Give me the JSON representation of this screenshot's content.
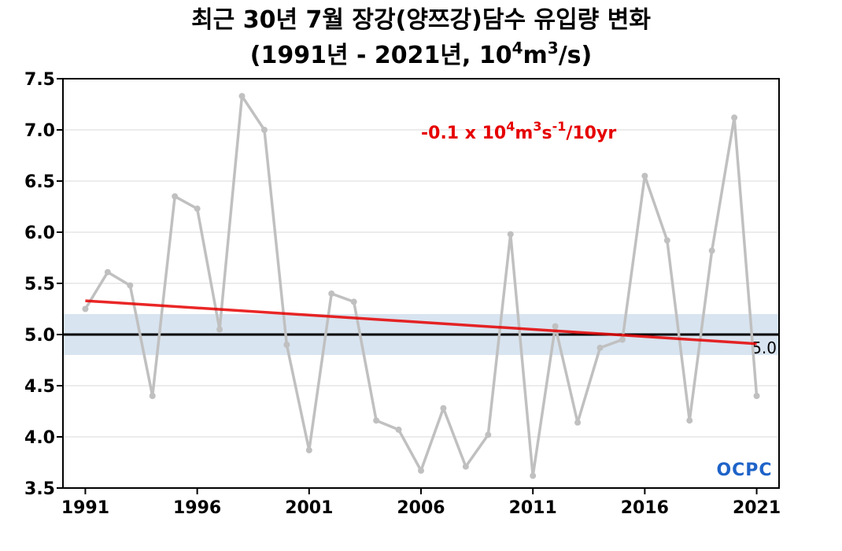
{
  "chart_data": {
    "type": "line",
    "title_line1": "최근 30년 7월 장강(양쯔강)담수 유입량 변화",
    "title_line2_prefix": "(1991년 - 2021년, 10",
    "title_line2_sup1": "4",
    "title_line2_mid": "m",
    "title_line2_sup2": "3",
    "title_line2_suffix": "/s)",
    "x": [
      1991,
      1992,
      1993,
      1994,
      1995,
      1996,
      1997,
      1998,
      1999,
      2000,
      2001,
      2002,
      2003,
      2004,
      2005,
      2006,
      2007,
      2008,
      2009,
      2010,
      2011,
      2012,
      2013,
      2014,
      2015,
      2016,
      2017,
      2018,
      2019,
      2020,
      2021
    ],
    "series": [
      {
        "values": [
          5.25,
          5.61,
          5.48,
          4.4,
          6.35,
          6.23,
          5.05,
          7.33,
          7.0,
          4.9,
          3.87,
          5.4,
          5.32,
          4.16,
          4.07,
          3.67,
          4.28,
          3.71,
          4.02,
          5.98,
          3.62,
          5.08,
          4.14,
          4.87,
          4.95,
          6.55,
          5.92,
          4.16,
          5.82,
          7.12,
          4.4
        ],
        "color": "#c0c0c0"
      }
    ],
    "trend": {
      "start": [
        1991,
        5.33
      ],
      "end": [
        2021,
        4.91
      ],
      "color": "#e60000",
      "label_main": "-0.1 x 10",
      "label_sup1": "4",
      "label_m": "m",
      "label_sup2": "3",
      "label_s": "s",
      "label_sup3": "-1",
      "label_tail": "/10yr"
    },
    "mean": {
      "value": 5.0,
      "label": "5.0",
      "band": [
        4.8,
        5.2
      ],
      "band_color": "#d8e4f0"
    },
    "xlim": [
      1990,
      2022
    ],
    "ylim": [
      3.5,
      7.5
    ],
    "xticks": [
      1991,
      1996,
      2001,
      2006,
      2011,
      2016,
      2021
    ],
    "xtick_labels": [
      "1991",
      "1996",
      "2001",
      "2006",
      "2011",
      "2016",
      "2021"
    ],
    "yticks": [
      3.5,
      4.0,
      4.5,
      5.0,
      5.5,
      6.0,
      6.5,
      7.0,
      7.5
    ],
    "ytick_labels": [
      "3.5",
      "4.0",
      "4.5",
      "5.0",
      "5.5",
      "6.0",
      "6.5",
      "7.0",
      "7.5"
    ],
    "grid": true
  },
  "logo": {
    "text": "OCPC",
    "color": "#1e63c8"
  }
}
